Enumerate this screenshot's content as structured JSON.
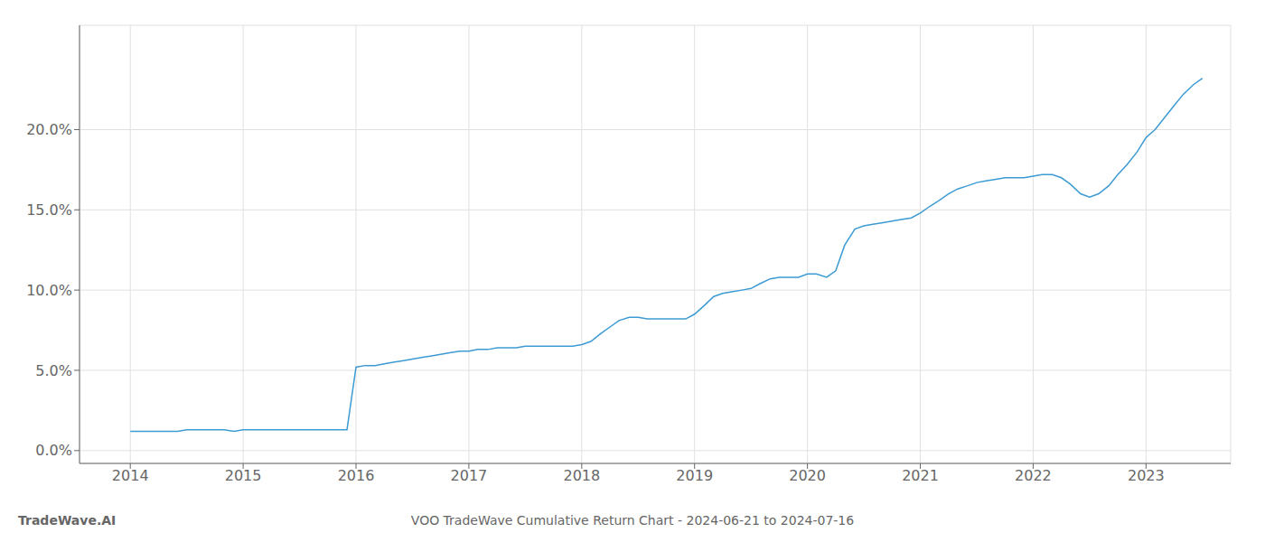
{
  "chart_data": {
    "type": "line",
    "title": "VOO TradeWave Cumulative Return Chart - 2024-06-21 to 2024-07-16",
    "annotations": [
      "TradeWave.AI"
    ],
    "color": "#3d9bd4",
    "grid": true,
    "xlim": [
      2013.55,
      2023.75
    ],
    "xticks": [
      2014,
      2015,
      2016,
      2017,
      2018,
      2019,
      2020,
      2021,
      2022,
      2023
    ],
    "ylim": [
      -0.008,
      0.265
    ],
    "yticks": [
      {
        "value": 0.0,
        "label": "0.0%"
      },
      {
        "value": 0.05,
        "label": "5.0%"
      },
      {
        "value": 0.1,
        "label": "10.0%"
      },
      {
        "value": 0.15,
        "label": "15.0%"
      },
      {
        "value": 0.2,
        "label": "20.0%"
      }
    ],
    "x": [
      2014.0,
      2014.08,
      2014.17,
      2014.25,
      2014.33,
      2014.42,
      2014.5,
      2014.58,
      2014.67,
      2014.75,
      2014.83,
      2014.92,
      2015.0,
      2015.08,
      2015.17,
      2015.25,
      2015.33,
      2015.42,
      2015.5,
      2015.58,
      2015.67,
      2015.75,
      2015.83,
      2015.92,
      2016.0,
      2016.08,
      2016.17,
      2016.25,
      2016.33,
      2016.42,
      2016.5,
      2016.58,
      2016.67,
      2016.75,
      2016.83,
      2016.92,
      2017.0,
      2017.08,
      2017.17,
      2017.25,
      2017.33,
      2017.42,
      2017.5,
      2017.58,
      2017.67,
      2017.75,
      2017.83,
      2017.92,
      2018.0,
      2018.08,
      2018.17,
      2018.25,
      2018.33,
      2018.42,
      2018.5,
      2018.58,
      2018.67,
      2018.75,
      2018.83,
      2018.92,
      2019.0,
      2019.08,
      2019.17,
      2019.25,
      2019.33,
      2019.42,
      2019.5,
      2019.58,
      2019.67,
      2019.75,
      2019.83,
      2019.92,
      2020.0,
      2020.08,
      2020.17,
      2020.25,
      2020.33,
      2020.42,
      2020.5,
      2020.58,
      2020.67,
      2020.75,
      2020.83,
      2020.92,
      2021.0,
      2021.08,
      2021.17,
      2021.25,
      2021.33,
      2021.42,
      2021.5,
      2021.58,
      2021.67,
      2021.75,
      2021.83,
      2021.92,
      2022.0,
      2022.08,
      2022.17,
      2022.25,
      2022.33,
      2022.42,
      2022.5,
      2022.58,
      2022.67,
      2022.75,
      2022.83,
      2022.92,
      2023.0,
      2023.08,
      2023.17,
      2023.25,
      2023.33,
      2023.42,
      2023.5
    ],
    "values": [
      0.012,
      0.012,
      0.012,
      0.012,
      0.012,
      0.012,
      0.013,
      0.013,
      0.013,
      0.013,
      0.013,
      0.012,
      0.013,
      0.013,
      0.013,
      0.013,
      0.013,
      0.013,
      0.013,
      0.013,
      0.013,
      0.013,
      0.013,
      0.013,
      0.052,
      0.053,
      0.053,
      0.054,
      0.055,
      0.056,
      0.057,
      0.058,
      0.059,
      0.06,
      0.061,
      0.062,
      0.062,
      0.063,
      0.063,
      0.064,
      0.064,
      0.064,
      0.065,
      0.065,
      0.065,
      0.065,
      0.065,
      0.065,
      0.066,
      0.068,
      0.073,
      0.077,
      0.081,
      0.083,
      0.083,
      0.082,
      0.082,
      0.082,
      0.082,
      0.082,
      0.085,
      0.09,
      0.096,
      0.098,
      0.099,
      0.1,
      0.101,
      0.104,
      0.107,
      0.108,
      0.108,
      0.108,
      0.11,
      0.11,
      0.108,
      0.112,
      0.128,
      0.138,
      0.14,
      0.141,
      0.142,
      0.143,
      0.144,
      0.145,
      0.148,
      0.152,
      0.156,
      0.16,
      0.163,
      0.165,
      0.167,
      0.168,
      0.169,
      0.17,
      0.17,
      0.17,
      0.171,
      0.172,
      0.172,
      0.17,
      0.166,
      0.16,
      0.158,
      0.16,
      0.165,
      0.172,
      0.178,
      0.186,
      0.195,
      0.2,
      0.208,
      0.215,
      0.222,
      0.228,
      0.232
    ]
  }
}
